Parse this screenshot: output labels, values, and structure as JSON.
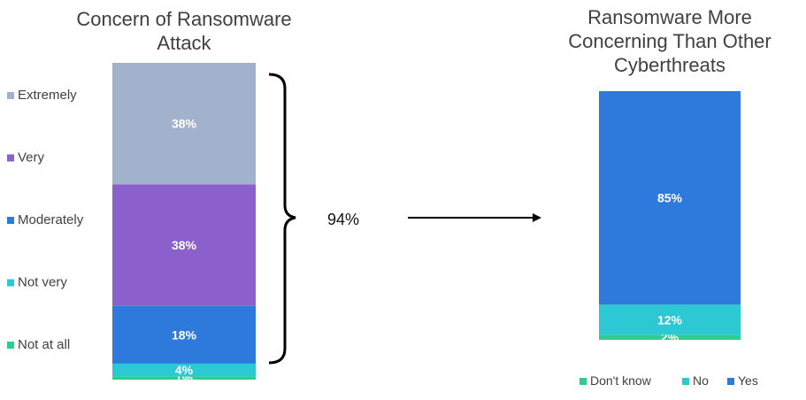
{
  "chart_data": [
    {
      "type": "bar",
      "stacked": true,
      "title": "Concern of Ransomware Attack",
      "title_lines": [
        "Concern of Ransomware",
        "Attack"
      ],
      "legend_placement": "left",
      "series": [
        {
          "name": "Not at all",
          "value": 1,
          "label": "1%",
          "color": "#2ecc8e"
        },
        {
          "name": "Not very",
          "value": 4,
          "label": "4%",
          "color": "#2cc9d4"
        },
        {
          "name": "Moderately",
          "value": 18,
          "label": "18%",
          "color": "#2e79dc"
        },
        {
          "name": "Very",
          "value": 38,
          "label": "38%",
          "color": "#8b5fcc"
        },
        {
          "name": "Extremely",
          "value": 38,
          "label": "38%",
          "color": "#a3b2cc"
        }
      ],
      "annotation": {
        "bracket_total": "94%"
      }
    },
    {
      "type": "bar",
      "stacked": true,
      "title": "Ransomware More Concerning Than Other Cyberthreats",
      "title_lines": [
        "Ransomware More",
        "Concerning Than Other",
        "Cyberthreats"
      ],
      "legend_placement": "bottom",
      "series": [
        {
          "name": "Don't know",
          "value": 2,
          "label": "2%",
          "color": "#2ecc8e"
        },
        {
          "name": "No",
          "value": 12,
          "label": "12%",
          "color": "#2cc9d4"
        },
        {
          "name": "Yes",
          "value": 85,
          "label": "85%",
          "color": "#2e79dc"
        }
      ]
    }
  ],
  "left_legend_order": [
    "Extremely",
    "Very",
    "Moderately",
    "Not very",
    "Not at all"
  ],
  "right_legend_order": [
    "Don't know",
    "No",
    "Yes"
  ],
  "arrow": {
    "from": "94%",
    "to": "right-chart"
  }
}
